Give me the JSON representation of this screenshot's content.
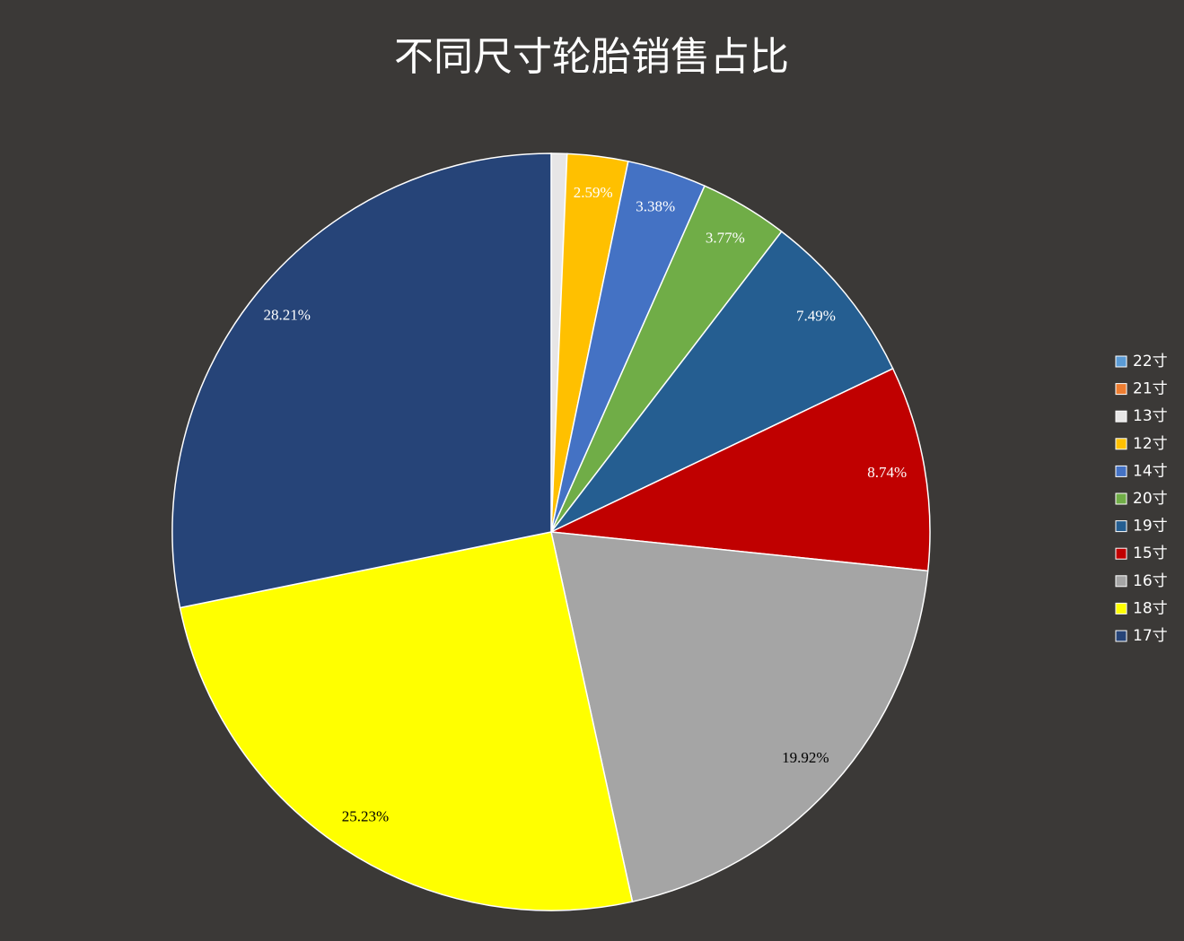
{
  "chart_data": {
    "type": "pie",
    "title": "不同尺寸轮胎销售占比",
    "categories": [
      "22寸",
      "21寸",
      "13寸",
      "12寸",
      "14寸",
      "20寸",
      "19寸",
      "15寸",
      "16寸",
      "18寸",
      "17寸"
    ],
    "values": [
      0,
      0,
      0.67,
      2.59,
      3.38,
      3.77,
      7.49,
      8.74,
      19.92,
      25.23,
      28.21
    ],
    "value_labels": [
      null,
      null,
      null,
      "2.59%",
      "3.38%",
      "3.77%",
      "7.49%",
      "8.74%",
      "19.92%",
      "25.23%",
      "28.21%"
    ],
    "colors": [
      "#5b9bd5",
      "#ed7d31",
      "#e7e6e6",
      "#ffc000",
      "#4472c4",
      "#70ad47",
      "#255e91",
      "#c00000",
      "#a5a5a5",
      "#ffff00",
      "#264478"
    ],
    "label_colors": [
      "#ffffff",
      "#ffffff",
      "#000000",
      "#ffffff",
      "#ffffff",
      "#ffffff",
      "#ffffff",
      "#ffffff",
      "#000000",
      "#000000",
      "#ffffff"
    ],
    "legend": "right"
  }
}
